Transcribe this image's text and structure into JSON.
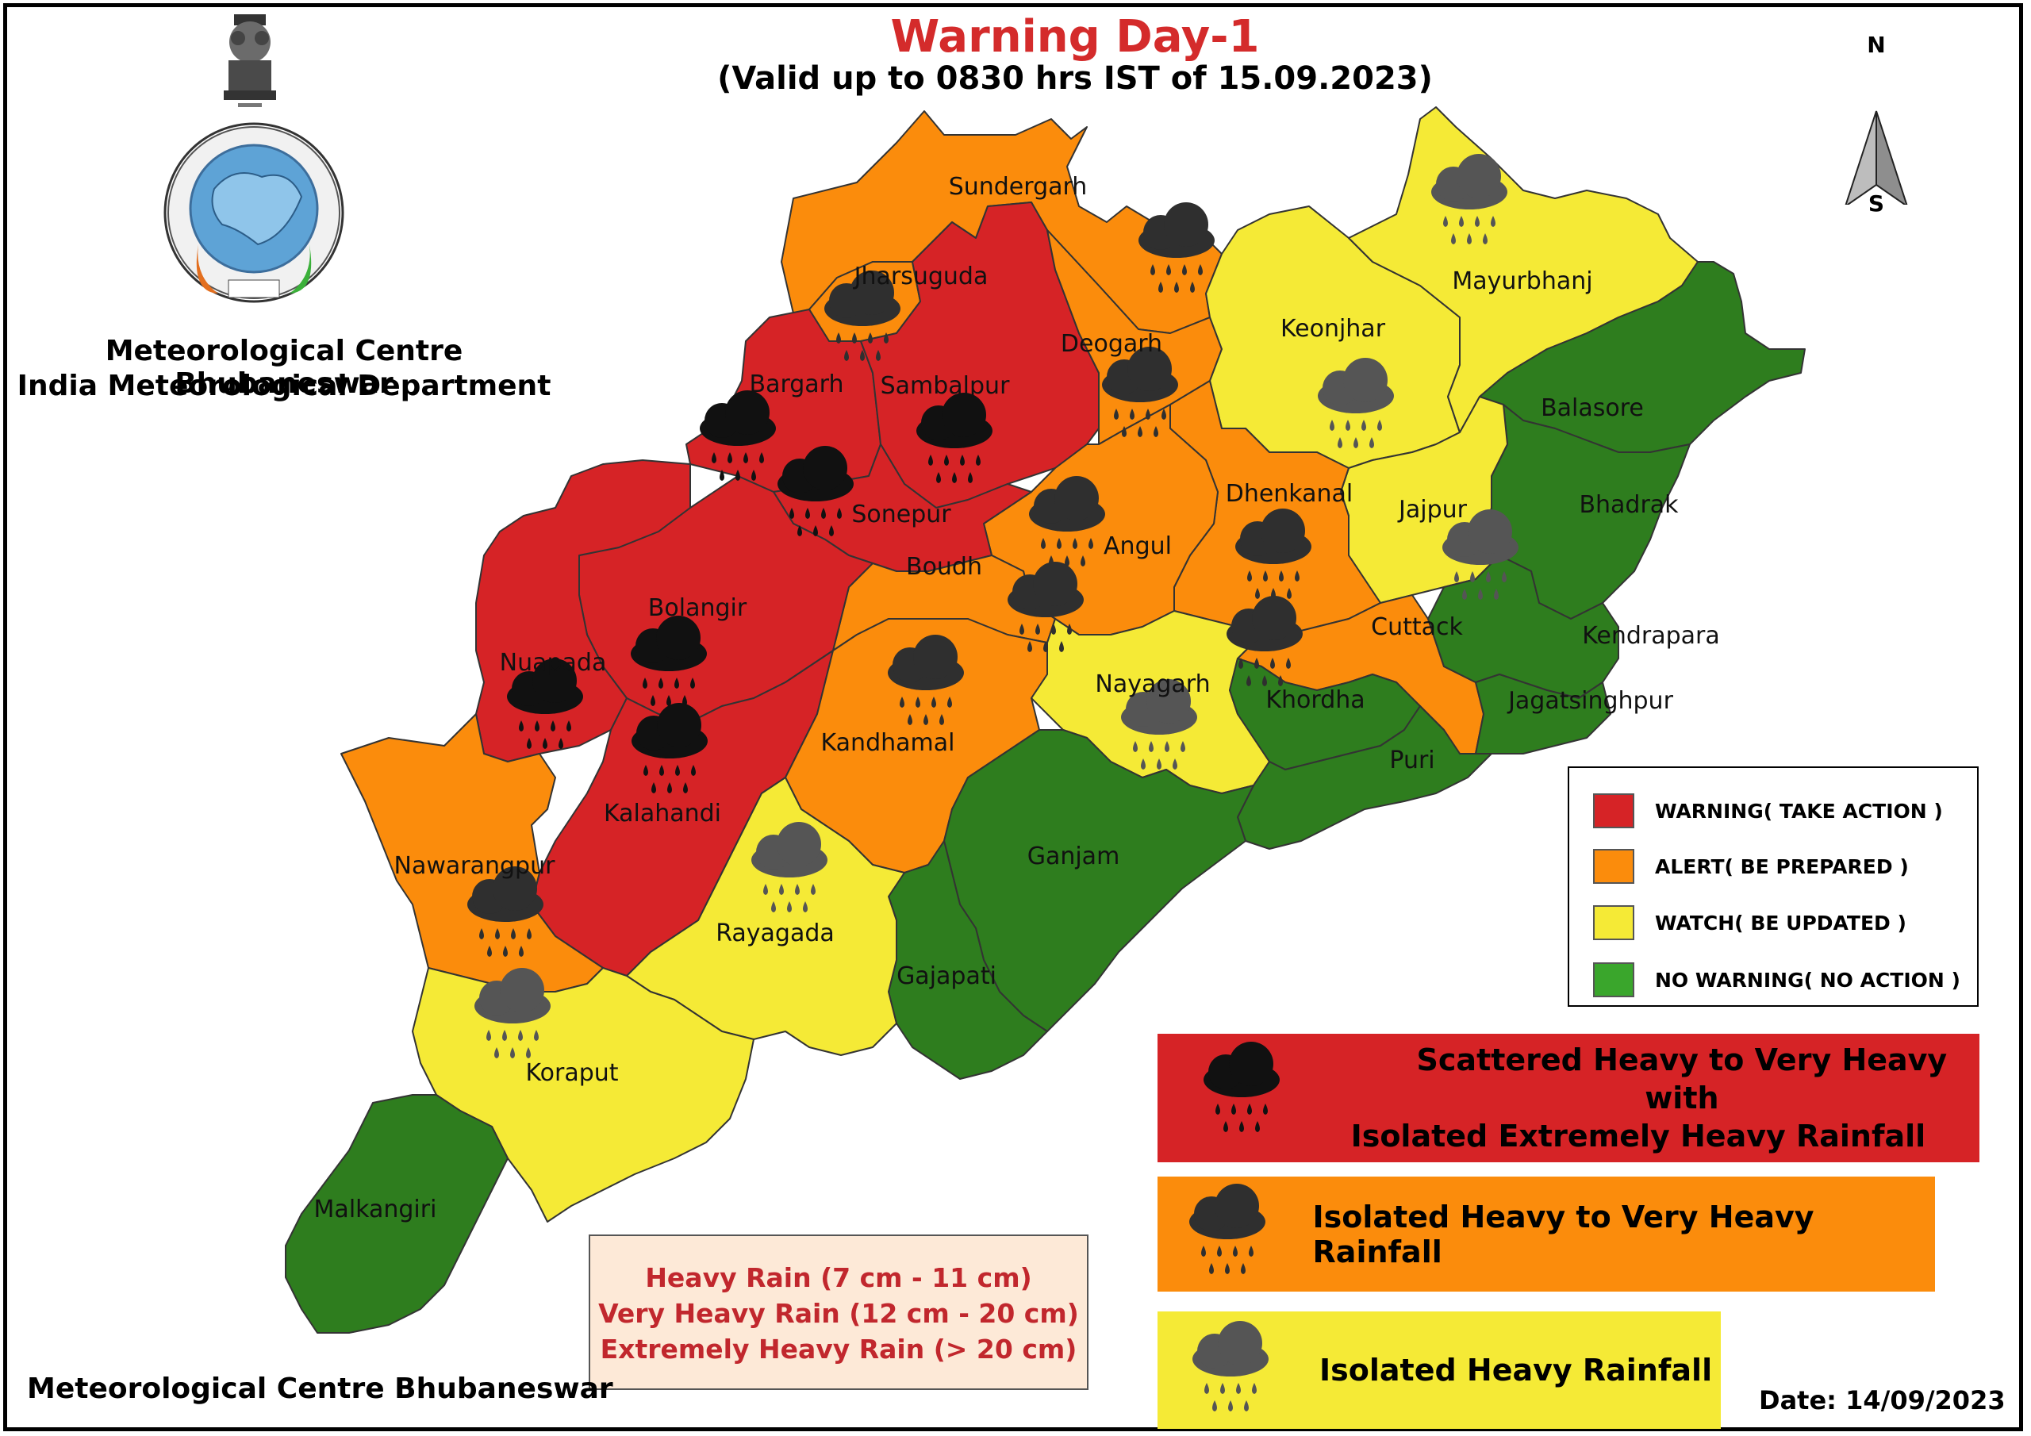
{
  "header": {
    "title": "Warning Day-1",
    "subtitle": "(Valid up to 0830 hrs IST of 15.09.2023)"
  },
  "organization": {
    "line1": "Meteorological Centre Bhubaneswar",
    "line2": "India Meteorological Department",
    "footer": "Meteorological Centre Bhubaneswar"
  },
  "date": "Date: 14/09/2023",
  "compass": {
    "north": "N",
    "south": "S"
  },
  "colors": {
    "warning": "#d62326",
    "alert": "#fb8c0c",
    "watch": "#f5ea36",
    "no_warning": "#2e7d1e",
    "legend_no_warning": "#3aa62c"
  },
  "districts": [
    {
      "name": "Sundergarh",
      "level": "alert",
      "icon": "orange-rain-cloud-icon"
    },
    {
      "name": "Jharsuguda",
      "level": "alert",
      "icon": "orange-rain-cloud-icon"
    },
    {
      "name": "Bargarh",
      "level": "warning",
      "icon": "heavy-rain-cloud-icon"
    },
    {
      "name": "Sambalpur",
      "level": "warning",
      "icon": "heavy-rain-cloud-icon"
    },
    {
      "name": "Deogarh",
      "level": "alert",
      "icon": "orange-rain-cloud-icon"
    },
    {
      "name": "Keonjhar",
      "level": "watch",
      "icon": "watch-rain-cloud-icon"
    },
    {
      "name": "Mayurbhanj",
      "level": "watch",
      "icon": "watch-rain-cloud-icon"
    },
    {
      "name": "Balasore",
      "level": "no_warning",
      "icon": ""
    },
    {
      "name": "Bhadrak",
      "level": "no_warning",
      "icon": ""
    },
    {
      "name": "Jajpur",
      "level": "watch",
      "icon": "watch-rain-cloud-icon"
    },
    {
      "name": "Dhenkanal",
      "level": "alert",
      "icon": "orange-rain-cloud-icon"
    },
    {
      "name": "Angul",
      "level": "alert",
      "icon": "orange-rain-cloud-icon"
    },
    {
      "name": "Sonepur",
      "level": "warning",
      "icon": "heavy-rain-cloud-icon"
    },
    {
      "name": "Boudh",
      "level": "alert",
      "icon": "orange-rain-cloud-icon"
    },
    {
      "name": "Bolangir",
      "level": "warning",
      "icon": "heavy-rain-cloud-icon"
    },
    {
      "name": "Nuapada",
      "level": "warning",
      "icon": "heavy-rain-cloud-icon"
    },
    {
      "name": "Kalahandi",
      "level": "warning",
      "icon": "heavy-rain-cloud-icon"
    },
    {
      "name": "Kandhamal",
      "level": "alert",
      "icon": "orange-rain-cloud-icon"
    },
    {
      "name": "Cuttack",
      "level": "alert",
      "icon": "orange-rain-cloud-icon"
    },
    {
      "name": "Kendrapara",
      "level": "no_warning",
      "icon": ""
    },
    {
      "name": "Jagatsinghpur",
      "level": "no_warning",
      "icon": ""
    },
    {
      "name": "Nayagarh",
      "level": "watch",
      "icon": "watch-rain-cloud-icon"
    },
    {
      "name": "Khordha",
      "level": "no_warning",
      "icon": ""
    },
    {
      "name": "Puri",
      "level": "no_warning",
      "icon": ""
    },
    {
      "name": "Ganjam",
      "level": "no_warning",
      "icon": ""
    },
    {
      "name": "Gajapati",
      "level": "no_warning",
      "icon": ""
    },
    {
      "name": "Rayagada",
      "level": "watch",
      "icon": "watch-rain-cloud-icon"
    },
    {
      "name": "Nawarangpur",
      "level": "alert",
      "icon": "orange-rain-cloud-icon"
    },
    {
      "name": "Koraput",
      "level": "watch",
      "icon": "watch-rain-cloud-icon"
    },
    {
      "name": "Malkangiri",
      "level": "no_warning",
      "icon": ""
    }
  ],
  "legend": [
    {
      "label": "WARNING( TAKE ACTION )",
      "color": "#d62326"
    },
    {
      "label": "ALERT( BE PREPARED )",
      "color": "#fb8c0c"
    },
    {
      "label": "WATCH( BE UPDATED )",
      "color": "#f5ea36"
    },
    {
      "label": "NO WARNING( NO ACTION )",
      "color": "#3aa62c"
    }
  ],
  "rain_bands": {
    "red": {
      "line1": "Scattered Heavy to Very Heavy with",
      "line2": "Isolated Extremely Heavy Rainfall",
      "icon": "heavy-rain-cloud-icon"
    },
    "orange": {
      "text": "Isolated Heavy to Very Heavy Rainfall",
      "icon": "orange-rain-cloud-icon"
    },
    "yellow": {
      "text": "Isolated Heavy Rainfall",
      "icon": "watch-rain-cloud-icon"
    }
  },
  "rain_scale": [
    "Heavy Rain (7 cm - 11 cm)",
    "Very Heavy Rain (12 cm - 20 cm)",
    "Extremely Heavy Rain (> 20 cm)"
  ]
}
